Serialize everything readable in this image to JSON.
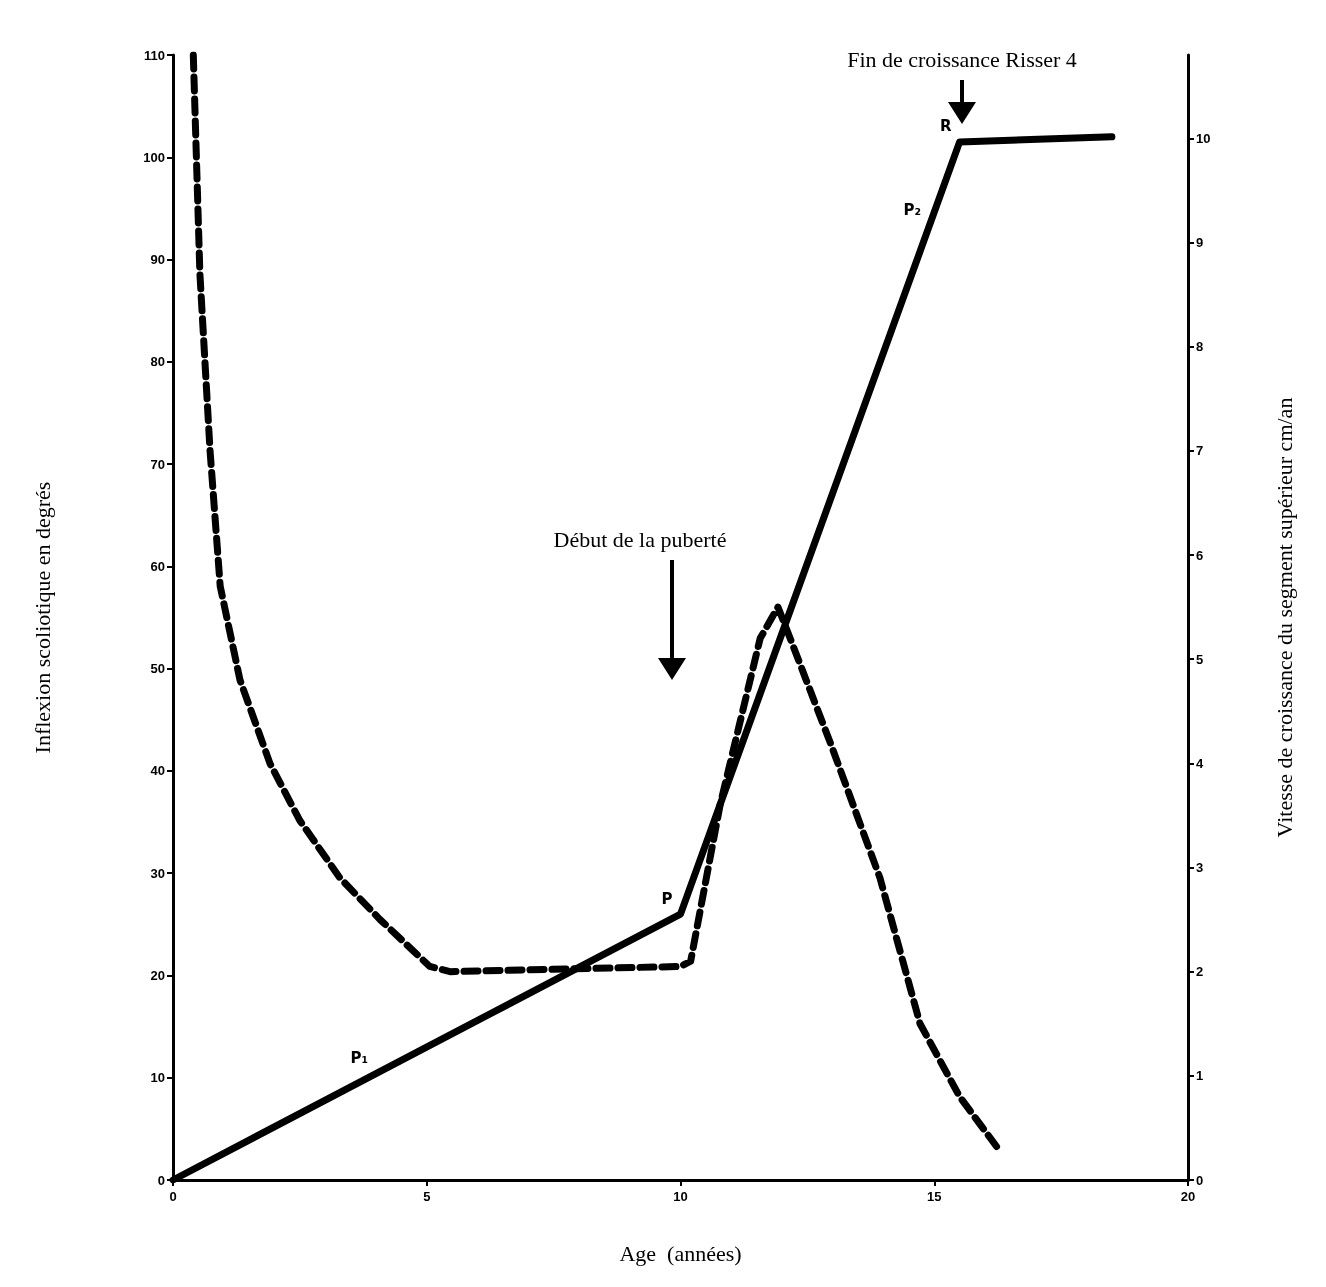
{
  "chart_data": {
    "type": "line",
    "xlabel": "Age  (années)",
    "ylabel": "Inflexion scoliotique en degrés",
    "y2label": "Vitesse de croissance du segment supérieur cm/an",
    "xlim": [
      0,
      20
    ],
    "xticks": [
      0,
      5,
      10,
      15,
      20
    ],
    "ylim": [
      0,
      110
    ],
    "yticks": [
      0,
      10,
      20,
      30,
      40,
      50,
      60,
      70,
      80,
      90,
      100,
      110
    ],
    "y2lim": [
      0,
      10.8
    ],
    "y2ticks": [
      0,
      1,
      2,
      3,
      4,
      5,
      6,
      7,
      8,
      9,
      10
    ],
    "marker": "none",
    "series": [
      {
        "color": "#000000",
        "line_style": "solid",
        "x": [
          0,
          10,
          15.5,
          18.5
        ],
        "values": [
          0,
          26,
          101.5,
          102
        ]
      },
      {
        "color": "#000000",
        "line_style": "dashed",
        "axis": "y2",
        "x": [
          0.4,
          0.53,
          0.73,
          0.93,
          1.32,
          1.91,
          2.5,
          3.29,
          4.08,
          5.06,
          5.46,
          10,
          10.2,
          10.78,
          11.57,
          11.92,
          12.16,
          12.95,
          13.93,
          14.72,
          15.5,
          16.26
        ],
        "values": [
          10.8,
          8.7,
          7.0,
          5.7,
          4.8,
          4.0,
          3.45,
          2.9,
          2.5,
          2.05,
          2.0,
          2.05,
          2.1,
          3.6,
          5.2,
          5.5,
          5.2,
          4.2,
          2.9,
          1.5,
          0.8,
          0.3
        ]
      }
    ],
    "annotations": [
      "Début de la puberté",
      "Fin de croissance Risser 4",
      {
        "text": "P",
        "x": 10,
        "y": 26
      },
      {
        "text": "R",
        "x": 15.5,
        "y": 101.5
      },
      {
        "text": "P₁",
        "x": 4,
        "y": 10.4
      },
      {
        "text": "P₂",
        "x": 14.9,
        "y": 93.3
      }
    ]
  }
}
